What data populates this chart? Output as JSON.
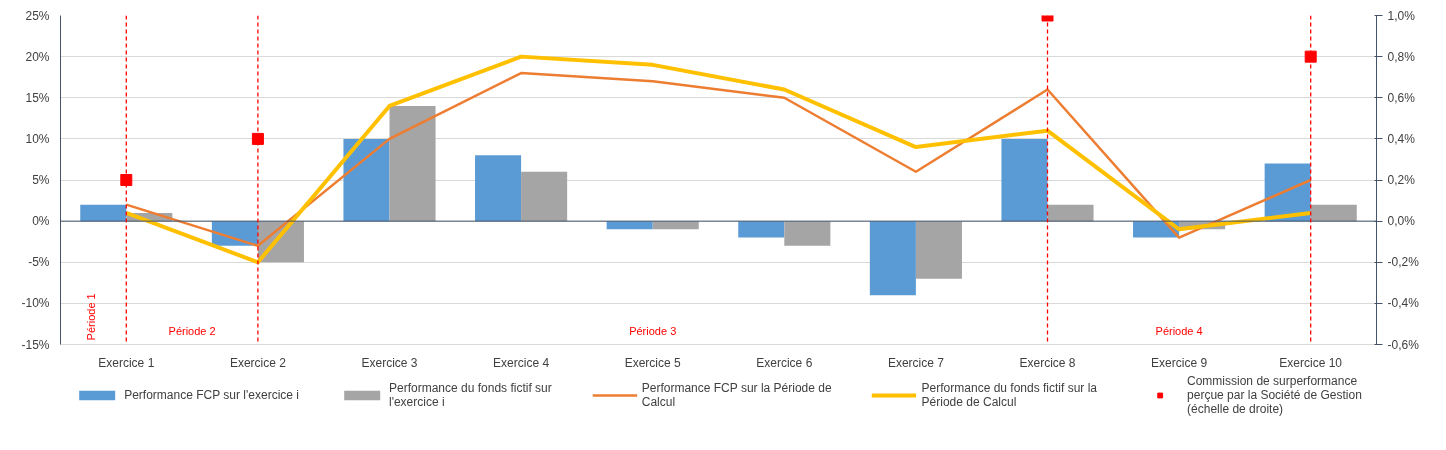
{
  "chart_data": {
    "type": "bar",
    "categories": [
      "Exercice 1",
      "Exercice 2",
      "Exercice 3",
      "Exercice 4",
      "Exercice 5",
      "Exercice 6",
      "Exercice 7",
      "Exercice 8",
      "Exercice 9",
      "Exercice 10"
    ],
    "series": [
      {
        "name": "Performance FCP sur l'exercice i",
        "color": "#5b9bd5",
        "values": [
          2,
          -3,
          10,
          8,
          -1,
          -2,
          -9,
          10,
          -2,
          7
        ]
      },
      {
        "name": "Performance du fonds fictif sur l'exercice i",
        "color": "#a5a5a5",
        "values": [
          1,
          -5,
          14,
          6,
          -1,
          -3,
          -7,
          2,
          -1,
          2
        ]
      },
      {
        "name": "Performance FCP sur la Période de Calcul",
        "type": "line",
        "color": "#ed7d31",
        "line_style": "solid",
        "values": [
          2,
          -3,
          10,
          18,
          17,
          15,
          6,
          16,
          -2,
          5
        ]
      },
      {
        "name": "Performance du fonds fictif sur la Période de Calcul",
        "type": "line",
        "color": "#ffc000",
        "line_style": "solid",
        "values": [
          1,
          -5,
          14,
          20,
          19,
          16,
          9,
          11,
          -1,
          1
        ]
      },
      {
        "name": "Commission de surperformance perçue par la Société de Gestion (échelle de droite)",
        "type": "scatter",
        "axis": "y2",
        "marker": "square",
        "color": "#ff0000",
        "values": [
          0.2,
          0.4,
          null,
          null,
          null,
          null,
          null,
          1.0,
          null,
          0.8
        ]
      }
    ],
    "ylim": [
      -15,
      25
    ],
    "yticks": [
      {
        "value": -15,
        "label": "-15%"
      },
      {
        "value": -10,
        "label": "-10%"
      },
      {
        "value": -5,
        "label": "-5%"
      },
      {
        "value": 0,
        "label": "0%"
      },
      {
        "value": 5,
        "label": "5%"
      },
      {
        "value": 10,
        "label": "10%"
      },
      {
        "value": 15,
        "label": "15%"
      },
      {
        "value": 20,
        "label": "20%"
      },
      {
        "value": 25,
        "label": "25%"
      }
    ],
    "y2lim": [
      -0.6,
      1.0
    ],
    "y2ticks": [
      {
        "value": -0.6,
        "label": "-0,6%"
      },
      {
        "value": -0.4,
        "label": "-0,4%"
      },
      {
        "value": -0.2,
        "label": "-0,2%"
      },
      {
        "value": 0,
        "label": "0,0%"
      },
      {
        "value": 0.2,
        "label": "0,2%"
      },
      {
        "value": 0.4,
        "label": "0,4%"
      },
      {
        "value": 0.6,
        "label": "0,6%"
      },
      {
        "value": 0.8,
        "label": "0,8%"
      },
      {
        "value": 1.0,
        "label": "1,0%"
      }
    ],
    "ref_lines": [
      {
        "axis": "x",
        "value": "Exercice 1",
        "color": "#ff0000",
        "line_style": "dashed"
      },
      {
        "axis": "x",
        "value": "Exercice 2",
        "color": "#ff0000",
        "line_style": "dashed"
      },
      {
        "axis": "x",
        "value": "Exercice 8",
        "color": "#ff0000",
        "line_style": "dashed"
      },
      {
        "axis": "x",
        "value": "Exercice 10",
        "color": "#ff0000",
        "line_style": "dashed"
      }
    ],
    "annotations": [
      "Période 1",
      "Période 2",
      "Période 3",
      "Période 4"
    ],
    "grid": "y",
    "legend": "bottom"
  }
}
